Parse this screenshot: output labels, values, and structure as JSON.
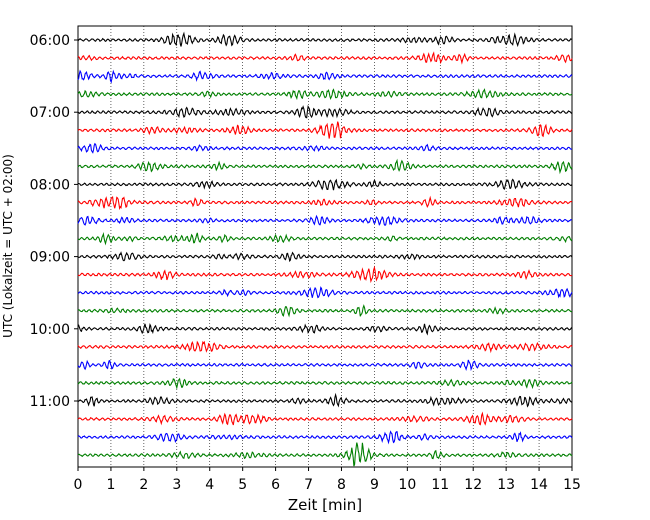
{
  "chart_data": {
    "type": "line",
    "title": "",
    "xlabel": "Zeit  [min]",
    "ylabel": "UTC (Lokalzeit = UTC + 02:00)",
    "xlim": [
      0,
      15
    ],
    "x_ticks": [
      0,
      1,
      2,
      3,
      4,
      5,
      6,
      7,
      8,
      9,
      10,
      11,
      12,
      13,
      14,
      15
    ],
    "x_tick_labels": [
      "0",
      "1",
      "2",
      "3",
      "4",
      "5",
      "6",
      "7",
      "8",
      "9",
      "10",
      "11",
      "12",
      "13",
      "14",
      "15"
    ],
    "y_tick_labels": [
      "06:00",
      "07:00",
      "08:00",
      "09:00",
      "10:00",
      "11:00"
    ],
    "y_tick_rows": [
      0,
      4,
      8,
      12,
      16,
      20
    ],
    "grid": "vertical dotted lines at each minute",
    "trace_rows_start": "06:00",
    "trace_interval_minutes": 15,
    "trace_count": 24,
    "trace_colors_cycle": [
      "#000000",
      "#ff0000",
      "#0000ff",
      "#007f00"
    ],
    "note_on_traces": "Seismogram traces of 15 minutes each; background noise with small bursts"
  }
}
